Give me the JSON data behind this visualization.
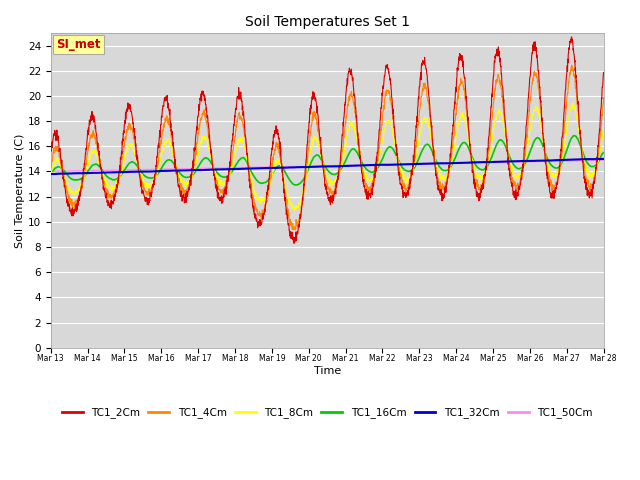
{
  "title": "Soil Temperatures Set 1",
  "xlabel": "Time",
  "ylabel": "Soil Temperature (C)",
  "ylim": [
    0,
    25
  ],
  "yticks": [
    0,
    2,
    4,
    6,
    8,
    10,
    12,
    14,
    16,
    18,
    20,
    22,
    24
  ],
  "bg_color": "#d8d8d8",
  "fig_color": "#ffffff",
  "annotation_text": "SI_met",
  "annotation_color": "#cc0000",
  "annotation_bg": "#ffff99",
  "annotation_border": "#aaaaaa",
  "series_colors": {
    "TC1_2Cm": "#dd0000",
    "TC1_4Cm": "#ff8800",
    "TC1_8Cm": "#ffff00",
    "TC1_16Cm": "#00cc00",
    "TC1_32Cm": "#0000cc",
    "TC1_50Cm": "#ff88ff"
  },
  "n_days": 15,
  "start_day": 13,
  "points_per_day": 144
}
